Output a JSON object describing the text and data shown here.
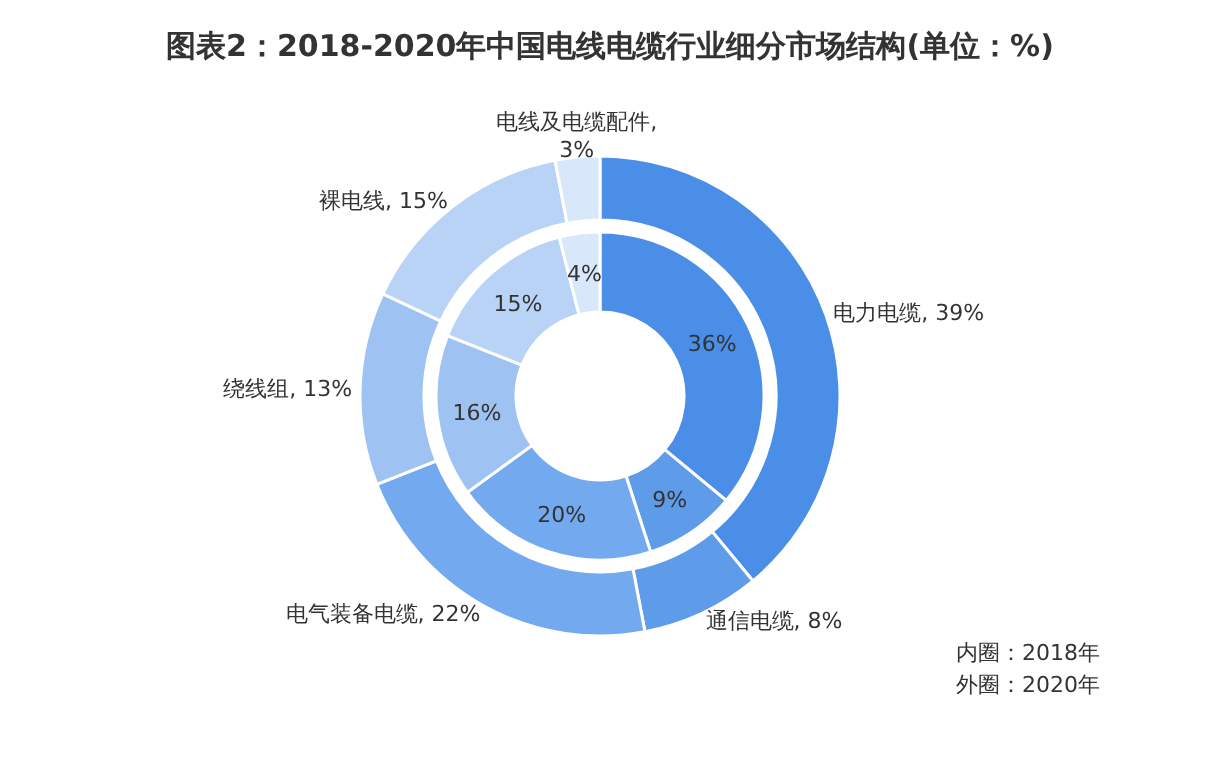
{
  "chart_data": {
    "type": "donut",
    "title": "图表2：2018-2020年中国电线电缆行业细分市场结构(单位：%)",
    "categories": [
      "电力电缆",
      "通信电缆",
      "电气装备电缆",
      "绕线组",
      "裸电线",
      "电线及电缆配件"
    ],
    "colors": [
      "#4a8ee8",
      "#5e9cea",
      "#73a9ee",
      "#9ec3f3",
      "#b8d3f6",
      "#d8e7fa"
    ],
    "series": [
      {
        "values": [
          36,
          9,
          20,
          16,
          15,
          4
        ],
        "value_labels": [
          "36%",
          "9%",
          "20%",
          "16%",
          "15%",
          "4%"
        ]
      },
      {
        "values": [
          39,
          8,
          22,
          13,
          15,
          3
        ],
        "value_labels": [
          ", 39%",
          ", 8%",
          ", 22%",
          ", 13%",
          ", 15%",
          ",\n3%"
        ]
      }
    ],
    "annotations": [
      "内圈：2018年",
      "外圈：2020年"
    ]
  }
}
